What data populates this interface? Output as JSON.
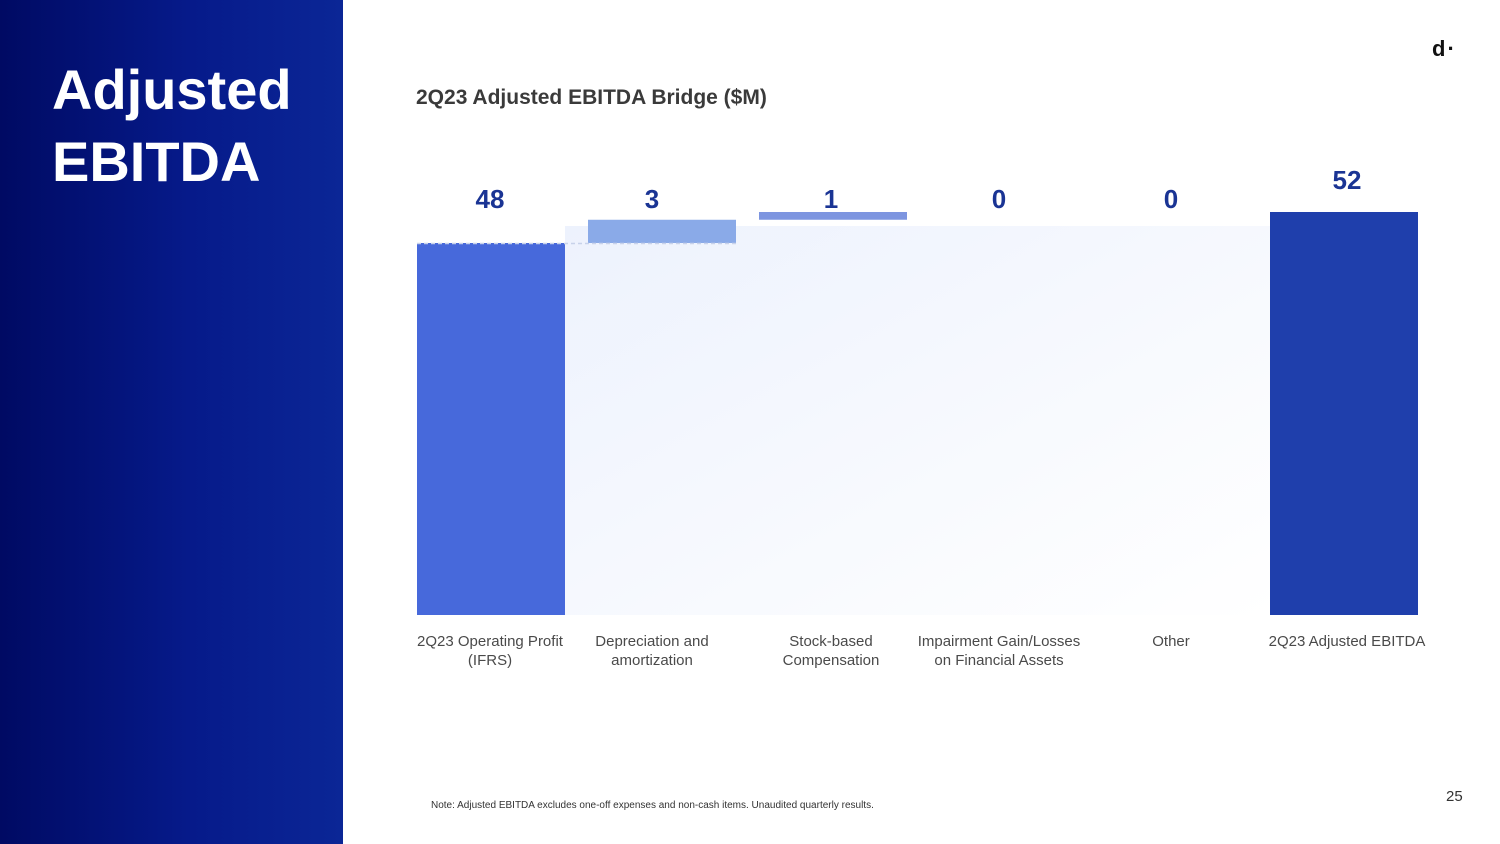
{
  "sidebar": {
    "title": "Adjusted EBITDA"
  },
  "logo": {
    "text": "d·"
  },
  "chart_data": {
    "type": "bar",
    "subtype": "waterfall",
    "title": "2Q23 Adjusted EBITDA Bridge ($M)",
    "categories": [
      "2Q23 Operating Profit (IFRS)",
      "Depreciation and amortization",
      "Stock-based Compensation",
      "Impairment Gain/Losses on Financial Assets",
      "Other",
      "2Q23 Adjusted EBITDA"
    ],
    "values": [
      48,
      3,
      1,
      0,
      0,
      52
    ],
    "value_labels": [
      "48",
      "3",
      "1",
      "0",
      "0",
      "52"
    ],
    "bar_kinds": [
      "total",
      "delta",
      "delta",
      "delta",
      "delta",
      "total"
    ],
    "colors": {
      "start_total": "#4769db",
      "delta_1": "#8aaae8",
      "delta_2": "#7d95e0",
      "end_total": "#1f3fac",
      "value_label": "#1a3494"
    },
    "ylim": [
      0,
      52
    ],
    "xlabel": "",
    "ylabel": "",
    "grid": false,
    "legend": "none"
  },
  "footer": {
    "note": "Note: Adjusted EBITDA excludes one-off expenses and non-cash items. Unaudited quarterly results.",
    "page_number": "25"
  }
}
